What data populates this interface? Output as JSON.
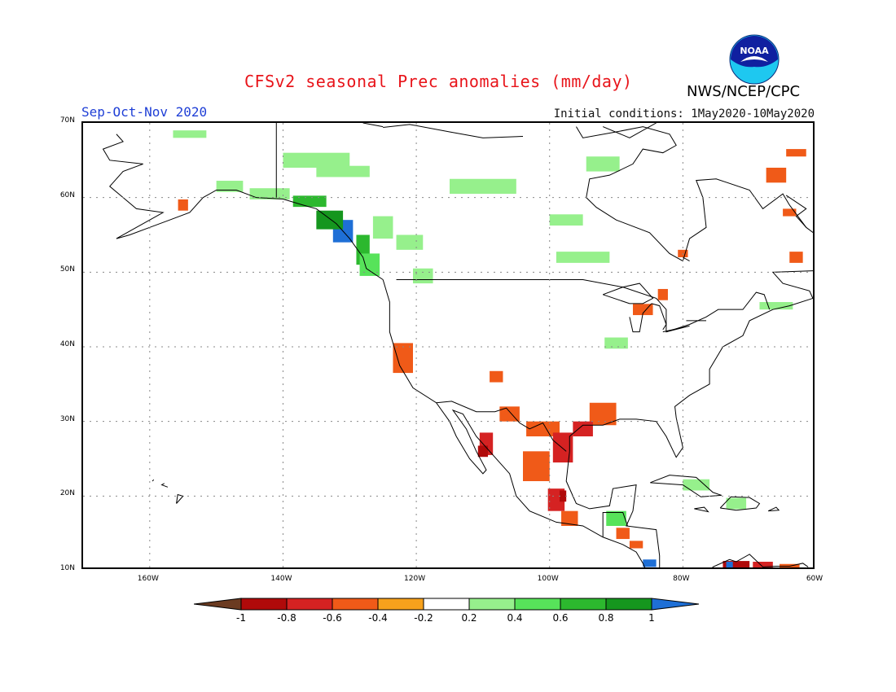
{
  "header": {
    "title": "CFSv2 seasonal Prec anomalies (mm/day)",
    "season": "Sep-Oct-Nov 2020",
    "initial_conditions": "Initial conditions: 1May2020-10May2020",
    "agency": "NWS/NCEP/CPC",
    "logo_text": "NOAA",
    "logo_icon": "noaa-logo-icon"
  },
  "map": {
    "extent": {
      "lon_min": -170,
      "lon_max": -60,
      "lat_min": 10,
      "lat_max": 70
    },
    "lat_labels": [
      "70N",
      "60N",
      "50N",
      "40N",
      "30N",
      "20N",
      "10N"
    ],
    "lon_labels": [
      "160W",
      "140W",
      "120W",
      "100W",
      "80W",
      "60W"
    ],
    "grid_lines": "dotted"
  },
  "colorbar": {
    "labels": [
      "-1",
      "-0.8",
      "-0.6",
      "-0.4",
      "-0.2",
      "0.2",
      "0.4",
      "0.6",
      "0.8",
      "1"
    ],
    "colors": [
      "#6b3b21",
      "#b00a0a",
      "#d52222",
      "#f05a18",
      "#f7a11c",
      "#ffffff",
      "#96f08c",
      "#57e35a",
      "#2cb82e",
      "#15961e",
      "#1e6fd6"
    ]
  },
  "anomalies": [
    {
      "lon": -131,
      "lat": 55.5,
      "w": 3,
      "h": 3,
      "level": 1.0
    },
    {
      "lon": -133,
      "lat": 57,
      "w": 4,
      "h": 2.5,
      "level": 0.8
    },
    {
      "lon": -128,
      "lat": 53,
      "w": 2,
      "h": 4,
      "level": 0.6
    },
    {
      "lon": -136,
      "lat": 59.5,
      "w": 5,
      "h": 1.5,
      "level": 0.6
    },
    {
      "lon": -127,
      "lat": 51,
      "w": 3,
      "h": 3,
      "level": 0.4
    },
    {
      "lon": -142,
      "lat": 60.5,
      "w": 6,
      "h": 1.5,
      "level": 0.3
    },
    {
      "lon": -135,
      "lat": 65,
      "w": 10,
      "h": 2,
      "level": 0.3
    },
    {
      "lon": -131,
      "lat": 63.5,
      "w": 8,
      "h": 1.5,
      "level": 0.3
    },
    {
      "lon": -125,
      "lat": 56,
      "w": 3,
      "h": 3,
      "level": 0.3
    },
    {
      "lon": -121,
      "lat": 54,
      "w": 4,
      "h": 2,
      "level": 0.3
    },
    {
      "lon": -119,
      "lat": 49.5,
      "w": 3,
      "h": 2,
      "level": 0.3
    },
    {
      "lon": -110,
      "lat": 61.5,
      "w": 10,
      "h": 2,
      "level": 0.3
    },
    {
      "lon": -92,
      "lat": 64.5,
      "w": 5,
      "h": 2,
      "level": 0.3
    },
    {
      "lon": -97.5,
      "lat": 57,
      "w": 5,
      "h": 1.5,
      "level": 0.3
    },
    {
      "lon": -95,
      "lat": 52,
      "w": 8,
      "h": 1.5,
      "level": 0.3
    },
    {
      "lon": -90,
      "lat": 40.5,
      "w": 3.5,
      "h": 1.5,
      "level": 0.3
    },
    {
      "lon": -154,
      "lat": 68.5,
      "w": 5,
      "h": 1,
      "level": 0.3
    },
    {
      "lon": -148,
      "lat": 61.5,
      "w": 4,
      "h": 1.5,
      "level": 0.3
    },
    {
      "lon": -66,
      "lat": 45.5,
      "w": 5,
      "h": 1,
      "level": 0.3
    },
    {
      "lon": -72,
      "lat": 19,
      "w": 3,
      "h": 1.5,
      "level": 0.3
    },
    {
      "lon": -78,
      "lat": 21.5,
      "w": 4,
      "h": 1.5,
      "level": 0.3
    },
    {
      "lon": -90,
      "lat": 17,
      "w": 3,
      "h": 2,
      "level": 0.5
    },
    {
      "lon": -122,
      "lat": 38.5,
      "w": 3,
      "h": 4,
      "level": -0.4
    },
    {
      "lon": -155,
      "lat": 59,
      "w": 1.5,
      "h": 1.5,
      "level": -0.4
    },
    {
      "lon": -108,
      "lat": 36,
      "w": 2,
      "h": 1.5,
      "level": -0.4
    },
    {
      "lon": -106,
      "lat": 31,
      "w": 3,
      "h": 2,
      "level": -0.4
    },
    {
      "lon": -101,
      "lat": 29,
      "w": 5,
      "h": 2,
      "level": -0.4
    },
    {
      "lon": -102,
      "lat": 24,
      "w": 4,
      "h": 4,
      "level": -0.4
    },
    {
      "lon": -98,
      "lat": 26.5,
      "w": 3,
      "h": 4,
      "level": -0.6
    },
    {
      "lon": -109.5,
      "lat": 27,
      "w": 2,
      "h": 3,
      "level": -0.6
    },
    {
      "lon": -110,
      "lat": 26,
      "w": 1.5,
      "h": 1.5,
      "level": -0.8
    },
    {
      "lon": -99,
      "lat": 19.5,
      "w": 2.5,
      "h": 3,
      "level": -0.6
    },
    {
      "lon": -98,
      "lat": 20,
      "w": 1,
      "h": 1.5,
      "level": -0.8
    },
    {
      "lon": -97,
      "lat": 17,
      "w": 2.5,
      "h": 2,
      "level": -0.4
    },
    {
      "lon": -92,
      "lat": 31,
      "w": 4,
      "h": 3,
      "level": -0.4
    },
    {
      "lon": -95,
      "lat": 29,
      "w": 3,
      "h": 2,
      "level": -0.6
    },
    {
      "lon": -89,
      "lat": 15,
      "w": 2,
      "h": 1.5,
      "level": -0.4
    },
    {
      "lon": -87,
      "lat": 13.5,
      "w": 2,
      "h": 1,
      "level": -0.4
    },
    {
      "lon": -86,
      "lat": 45,
      "w": 3,
      "h": 1.5,
      "level": -0.4
    },
    {
      "lon": -83,
      "lat": 47,
      "w": 1.5,
      "h": 1.5,
      "level": -0.4
    },
    {
      "lon": -80,
      "lat": 52.5,
      "w": 1.5,
      "h": 1,
      "level": -0.4
    },
    {
      "lon": -63,
      "lat": 52,
      "w": 2,
      "h": 1.5,
      "level": -0.4
    },
    {
      "lon": -64,
      "lat": 58,
      "w": 2,
      "h": 1,
      "level": -0.4
    },
    {
      "lon": -66,
      "lat": 63,
      "w": 3,
      "h": 2,
      "level": -0.4
    },
    {
      "lon": -63,
      "lat": 66,
      "w": 3,
      "h": 1,
      "level": -0.4
    },
    {
      "lon": -72,
      "lat": 10.7,
      "w": 4,
      "h": 1.2,
      "level": -0.8
    },
    {
      "lon": -68,
      "lat": 10.7,
      "w": 3,
      "h": 1,
      "level": -0.6
    },
    {
      "lon": -64,
      "lat": 10.5,
      "w": 3,
      "h": 0.8,
      "level": -0.4
    },
    {
      "lon": -85,
      "lat": 11,
      "w": 2,
      "h": 1,
      "level": 1.0
    },
    {
      "lon": -73,
      "lat": 10.7,
      "w": 1,
      "h": 1,
      "level": 1.0
    }
  ]
}
